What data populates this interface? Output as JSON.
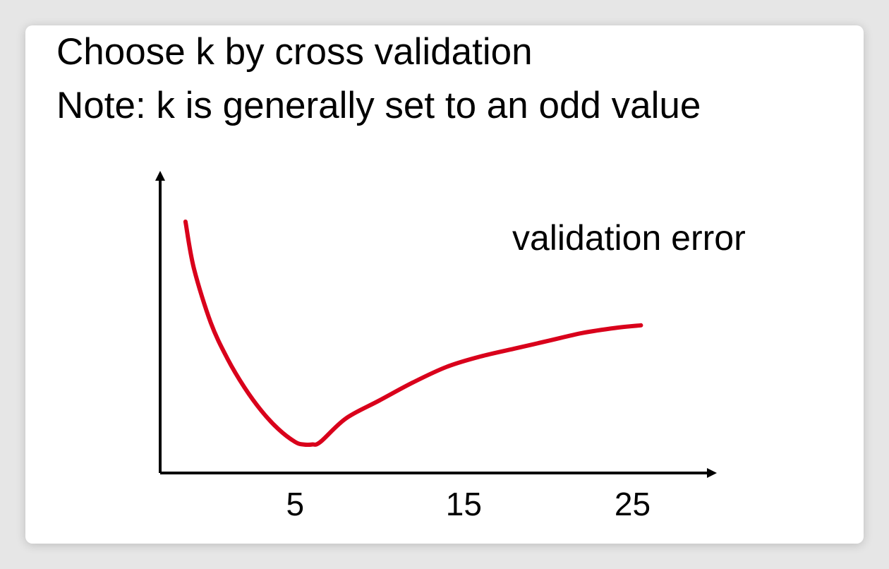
{
  "slide": {
    "title_line1": "Choose k by cross validation",
    "title_line2": "Note: k is generally set to an odd value"
  },
  "chart_data": {
    "type": "line",
    "title": "",
    "xlabel": "",
    "ylabel": "",
    "x_ticks": [
      5,
      15,
      25
    ],
    "xlim": [
      -3,
      30
    ],
    "ylim": [
      0,
      1
    ],
    "grid": false,
    "annotations": [
      {
        "text": "validation error",
        "position": "upper-right"
      }
    ],
    "series": [
      {
        "color": "#d9001b",
        "points": [
          [
            -1.5,
            0.97
          ],
          [
            -1.0,
            0.79
          ],
          [
            0.0,
            0.58
          ],
          [
            1.0,
            0.44
          ],
          [
            2.0,
            0.33
          ],
          [
            3.0,
            0.24
          ],
          [
            4.0,
            0.17
          ],
          [
            5.0,
            0.12
          ],
          [
            5.5,
            0.11
          ],
          [
            6.0,
            0.11
          ],
          [
            6.5,
            0.12
          ],
          [
            8.0,
            0.21
          ],
          [
            10.0,
            0.28
          ],
          [
            12.0,
            0.35
          ],
          [
            14.0,
            0.41
          ],
          [
            16.0,
            0.45
          ],
          [
            18.0,
            0.48
          ],
          [
            20.0,
            0.51
          ],
          [
            22.0,
            0.54
          ],
          [
            24.0,
            0.56
          ],
          [
            25.5,
            0.57
          ]
        ]
      }
    ],
    "colors": {
      "curve": "#d9001b",
      "axes": "#000000",
      "text": "#000000"
    }
  }
}
